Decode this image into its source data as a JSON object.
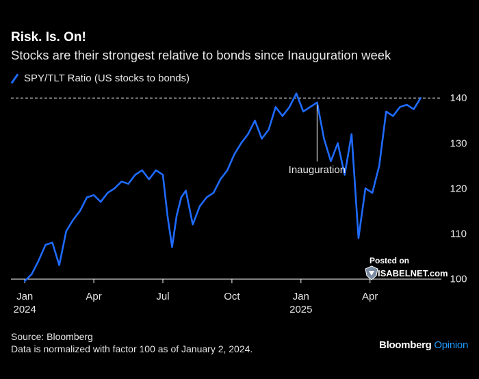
{
  "chart_data": {
    "type": "line",
    "title": "Risk. Is. On!",
    "subtitle": "Stocks are their strongest relative to bonds since Inauguration week",
    "series": [
      {
        "name": "SPY/TLT Ratio (US stocks to bonds)",
        "color": "#1f6bff",
        "x": [
          0,
          0.3,
          0.6,
          0.9,
          1.2,
          1.5,
          1.8,
          2.1,
          2.4,
          2.7,
          3.0,
          3.3,
          3.6,
          3.9,
          4.2,
          4.5,
          4.8,
          5.1,
          5.4,
          5.7,
          6.0,
          6.2,
          6.4,
          6.6,
          6.8,
          7.0,
          7.3,
          7.6,
          7.9,
          8.2,
          8.5,
          8.8,
          9.1,
          9.4,
          9.7,
          10.0,
          10.3,
          10.6,
          10.9,
          11.2,
          11.5,
          11.8,
          12.1,
          12.4,
          12.7,
          13.0,
          13.3,
          13.6,
          13.9,
          14.2,
          14.5,
          14.8,
          15.1,
          15.4,
          15.7,
          16.0,
          16.3,
          16.6,
          16.9,
          17.2
        ],
        "values": [
          99.5,
          101,
          104,
          107.5,
          108,
          103,
          110.5,
          113,
          115,
          118,
          118.5,
          117,
          119,
          120,
          121.5,
          121,
          123,
          124,
          122,
          124,
          123,
          114,
          107,
          114,
          118,
          119.5,
          112,
          116,
          118,
          119,
          122,
          124,
          127.5,
          130,
          132,
          135,
          131,
          133,
          138,
          136,
          138,
          141,
          137,
          138,
          139,
          131,
          126,
          130,
          123,
          132,
          109,
          120,
          119,
          125,
          137,
          136,
          138,
          138.5,
          137.5,
          140
        ],
        "labeled": "Inauguration"
      }
    ],
    "x_ticks": [
      {
        "at": 0,
        "label": "Jan",
        "year": "2024"
      },
      {
        "at": 3,
        "label": "Apr",
        "year": ""
      },
      {
        "at": 6,
        "label": "Jul",
        "year": ""
      },
      {
        "at": 9,
        "label": "Oct",
        "year": ""
      },
      {
        "at": 12,
        "label": "Jan",
        "year": "2025"
      },
      {
        "at": 15,
        "label": "Apr",
        "year": ""
      }
    ],
    "y_ticks": [
      "100",
      "110",
      "120",
      "130",
      "140"
    ],
    "ylim": [
      98.7,
      142
    ],
    "xlim": [
      -0.6,
      18.1
    ],
    "reference_line": 140,
    "annotation": {
      "label": "Inauguration",
      "x": 12.7,
      "y": 138.5
    },
    "grid": false
  },
  "footer": {
    "source": "Source: Bloomberg",
    "note": "Data is normalized with factor 100 as of January 2, 2024."
  },
  "brand": {
    "name": "Bloomberg",
    "suffix": "Opinion"
  },
  "watermark": {
    "line1": "Posted on",
    "line2": "ISABELNET.com"
  }
}
